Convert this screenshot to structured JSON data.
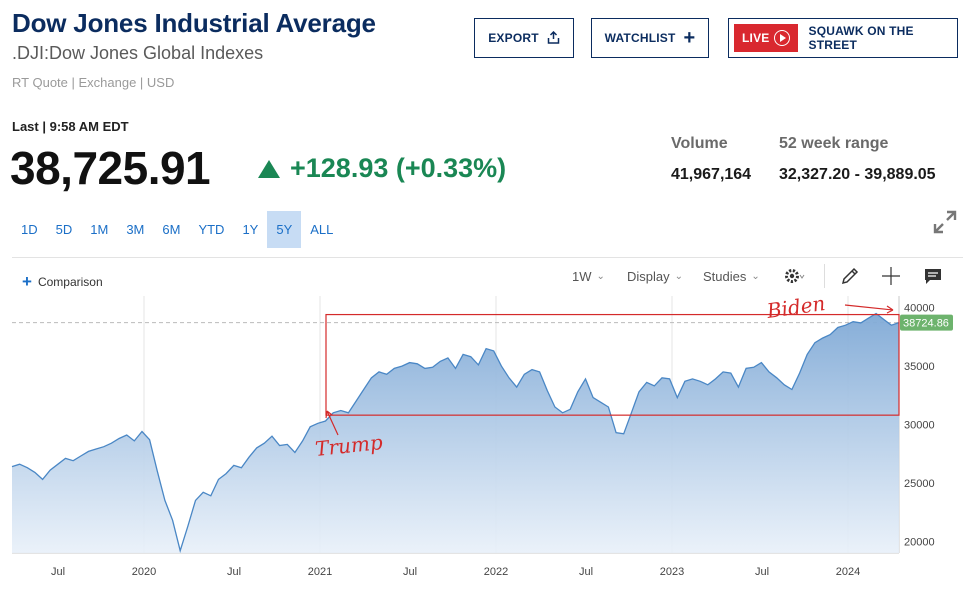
{
  "header": {
    "title": "Dow Jones Industrial Average",
    "subtitle": ".DJI:Dow Jones Global Indexes",
    "quote_info": "RT Quote | Exchange | USD"
  },
  "actions": {
    "export_label": "EXPORT",
    "watchlist_label": "WATCHLIST",
    "live_badge": "LIVE",
    "live_label": "SQUAWK ON THE STREET"
  },
  "quote": {
    "last_time": "Last | 9:58 AM EDT",
    "price": "38,725.91",
    "change": "+128.93 (+0.33%)",
    "change_color": "#1a8754"
  },
  "stats": {
    "volume_label": "Volume",
    "volume_value": "41,967,164",
    "range_label": "52 week range",
    "range_value": "32,327.20 - 39,889.05"
  },
  "ranges": [
    "1D",
    "5D",
    "1M",
    "3M",
    "6M",
    "YTD",
    "1Y",
    "5Y",
    "ALL"
  ],
  "active_range": "5Y",
  "toolbar": {
    "comparison_label": "Comparison",
    "interval_label": "1W",
    "display_label": "Display",
    "studies_label": "Studies"
  },
  "icons": [
    "share-icon",
    "plus-icon",
    "play-icon",
    "expand-icon",
    "gear-icon",
    "pencil-icon",
    "crosshair-icon",
    "comment-icon"
  ],
  "chart_data": {
    "type": "area",
    "x_tick_labels": [
      "Jul",
      "2020",
      "Jul",
      "2021",
      "Jul",
      "2022",
      "Jul",
      "2023",
      "Jul",
      "2024"
    ],
    "y_tick_labels": [
      "40000",
      "35000",
      "30000",
      "25000",
      "20000"
    ],
    "ylim": [
      19000,
      41000
    ],
    "current_value_label": "38724.86",
    "current_value": 38725,
    "line_color": "#4a87c5",
    "label_color": "#6db36d",
    "series": [
      {
        "values": [
          26400,
          26600,
          26300,
          25900,
          25300,
          26100,
          26600,
          27100,
          26900,
          27300,
          27700,
          27900,
          28100,
          28400,
          28800,
          29100,
          28600,
          29400,
          28700,
          26000,
          23500,
          21800,
          19200,
          21300,
          23500,
          24200,
          23900,
          25300,
          25800,
          26500,
          26300,
          27200,
          28000,
          28400,
          29000,
          28200,
          28300,
          27600,
          28600,
          29800,
          30100,
          30300,
          31000,
          31200,
          31000,
          32000,
          33000,
          34000,
          34500,
          34300,
          34800,
          35000,
          35300,
          35200,
          34800,
          34900,
          35400,
          35700,
          34800,
          36000,
          35800,
          35100,
          36500,
          36300,
          35000,
          34000,
          33200,
          34300,
          34700,
          34500,
          32900,
          31500,
          31000,
          31300,
          32800,
          33900,
          32300,
          31900,
          31500,
          29300,
          29200,
          31000,
          32800,
          33600,
          33300,
          34000,
          33900,
          32300,
          33700,
          33900,
          33700,
          33400,
          33900,
          34500,
          34400,
          33200,
          34800,
          34900,
          35300,
          34500,
          34000,
          33400,
          33000,
          34400,
          36000,
          37000,
          37400,
          37700,
          38300,
          38500,
          38800,
          38700,
          39100,
          39500,
          39000,
          38500,
          38726
        ]
      }
    ],
    "annotations": {
      "trump_label": "Trump",
      "biden_label": "Biden",
      "annotation_color": "#d42a2a",
      "trump_level": 30800,
      "biden_level": 38726
    }
  }
}
